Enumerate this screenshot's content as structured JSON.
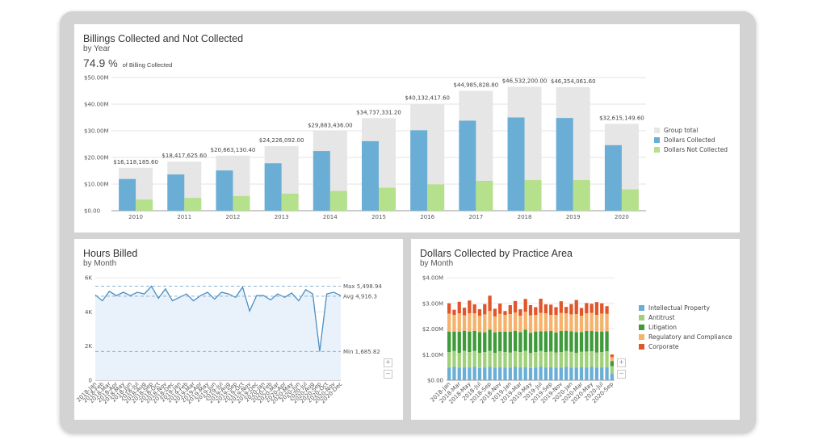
{
  "billing": {
    "title": "Billings Collected and Not Collected",
    "subtitle": "by Year",
    "kpi_value": "74.9",
    "kpi_unit": "%",
    "kpi_caption": "of Billing Collected"
  },
  "hours": {
    "title": "Hours Billed",
    "subtitle": "by Month",
    "zoom_in": "+",
    "zoom_out": "−"
  },
  "dollars": {
    "title": "Dollars Collected by Practice Area",
    "subtitle": "by Month",
    "zoom_in": "+",
    "zoom_out": "−"
  },
  "colors": {
    "group_total": "#e6e6e6",
    "collected": "#6aaed6",
    "not_collected": "#b5e08c",
    "area_fill": "#e9f2fb",
    "line": "#4a8ec2",
    "ip": "#6aaed6",
    "antitrust": "#9fd17a",
    "litigation": "#3f9a3a",
    "regulatory": "#f6b26b",
    "corporate": "#e0552a"
  },
  "chart_data": [
    {
      "type": "bar",
      "id": "billings",
      "categories": [
        "2010",
        "2011",
        "2012",
        "2013",
        "2014",
        "2015",
        "2016",
        "2017",
        "2018",
        "2019",
        "2020"
      ],
      "ylim": [
        0,
        50000000
      ],
      "y_ticks": [
        "$0.00",
        "$10.00M",
        "$20.00M",
        "$30.00M",
        "$40.00M",
        "$50.00M"
      ],
      "y_tick_values": [
        0,
        10000000,
        20000000,
        30000000,
        40000000,
        50000000
      ],
      "total_labels": [
        "$16,118,185.60",
        "$18,417,625.60",
        "$20,663,130.40",
        "$24,226,092.00",
        "$29,883,436.00",
        "$34,737,331.20",
        "$40,132,417.60",
        "$44,985,828.80",
        "$46,532,200.00",
        "$46,354,061.60",
        "$32,615,149.60"
      ],
      "series": [
        {
          "name": "Group total",
          "values": [
            16118185.6,
            18417625.6,
            20663130.4,
            24226092.0,
            29883436.0,
            34737331.2,
            40132417.6,
            44985828.8,
            46532200.0,
            46354061.6,
            32615149.6
          ]
        },
        {
          "name": "Dollars Collected",
          "values": [
            11900000,
            13600000,
            15100000,
            17800000,
            22400000,
            26100000,
            30200000,
            33800000,
            35000000,
            34800000,
            24600000
          ]
        },
        {
          "name": "Dollars Not Collected",
          "values": [
            4200000,
            4800000,
            5500000,
            6400000,
            7400000,
            8600000,
            9900000,
            11200000,
            11500000,
            11500000,
            8000000
          ]
        }
      ],
      "legend": "right",
      "grid": true
    },
    {
      "type": "line",
      "id": "hours",
      "x": [
        "2018-Jan",
        "2018-Feb",
        "2018-Mar",
        "2018-Apr",
        "2018-May",
        "2018-Jun",
        "2018-Jul",
        "2018-Aug",
        "2018-Sep",
        "2018-Oct",
        "2018-Nov",
        "2018-Dec",
        "2019-Jan",
        "2019-Feb",
        "2019-Mar",
        "2019-Apr",
        "2019-May",
        "2019-Jun",
        "2019-Jul",
        "2019-Aug",
        "2019-Sep",
        "2019-Oct",
        "2019-Nov",
        "2019-Dec",
        "2020-Jan",
        "2020-Feb",
        "2020-Mar",
        "2020-Apr",
        "2020-May",
        "2020-Jun",
        "2020-Jul",
        "2020-Aug",
        "2020-Sep",
        "2020-Oct",
        "2020-Nov",
        "2020-Dec"
      ],
      "values": [
        5000,
        4650,
        5200,
        4950,
        5150,
        4950,
        5150,
        5050,
        5500,
        4800,
        5350,
        4650,
        4850,
        5050,
        4650,
        4950,
        5150,
        4750,
        5150,
        5050,
        4850,
        5450,
        4050,
        4950,
        4950,
        4700,
        5050,
        4850,
        5100,
        4650,
        5300,
        5050,
        1685.82,
        5050,
        5150,
        4950
      ],
      "ylim": [
        0,
        6000
      ],
      "y_ticks": [
        "0",
        "2K",
        "4K",
        "6K"
      ],
      "y_tick_values": [
        0,
        2000,
        4000,
        6000
      ],
      "reference_lines": [
        {
          "label": "Max 5,498.94",
          "value": 5498.94
        },
        {
          "label": "Avg 4,916.3",
          "value": 4916.3
        },
        {
          "label": "Min 1,685.82",
          "value": 1685.82
        }
      ],
      "grid": true
    },
    {
      "type": "bar",
      "stacked": true,
      "id": "practice",
      "categories": [
        "2018-Jan",
        "2018-Feb",
        "2018-Mar",
        "2018-Apr",
        "2018-May",
        "2018-Jun",
        "2018-Jul",
        "2018-Aug",
        "2018-Sep",
        "2018-Oct",
        "2018-Nov",
        "2018-Dec",
        "2019-Jan",
        "2019-Feb",
        "2019-Mar",
        "2019-Apr",
        "2019-May",
        "2019-Jun",
        "2019-Jul",
        "2019-Aug",
        "2019-Sep",
        "2019-Oct",
        "2019-Nov",
        "2019-Dec",
        "2020-Jan",
        "2020-Feb",
        "2020-Mar",
        "2020-Apr",
        "2020-May",
        "2020-Jun",
        "2020-Jul",
        "2020-Aug",
        "2020-Sep"
      ],
      "x_tick_labels": [
        "2018-Jan",
        "2018-Mar",
        "2018-May",
        "2018-Jul",
        "2018-Sep",
        "2018-Nov",
        "2019-Jan",
        "2019-Mar",
        "2019-May",
        "2019-Jul",
        "2019-Sep",
        "2019-Nov",
        "2020-Jan",
        "2020-Mar",
        "2020-May",
        "2020-Jul",
        "2020-Sep"
      ],
      "ylim": [
        0,
        4000000
      ],
      "y_ticks": [
        "$0.00",
        "$1.00M",
        "$2.00M",
        "$3.00M",
        "$4.00M"
      ],
      "y_tick_values": [
        0,
        1000000,
        2000000,
        3000000,
        4000000
      ],
      "series": [
        {
          "name": "Intellectual Property",
          "values": [
            500000,
            520000,
            490000,
            510000,
            500000,
            530000,
            480000,
            500000,
            520000,
            490000,
            510000,
            500000,
            490000,
            520000,
            500000,
            510000,
            480000,
            500000,
            520000,
            500000,
            510000,
            490000,
            500000,
            520000,
            500000,
            490000,
            510000,
            500000,
            520000,
            490000,
            500000,
            510000,
            250000
          ]
        },
        {
          "name": "Antitrust",
          "values": [
            600000,
            620000,
            580000,
            640000,
            600000,
            610000,
            590000,
            600000,
            630000,
            580000,
            620000,
            600000,
            590000,
            610000,
            600000,
            640000,
            580000,
            600000,
            620000,
            600000,
            610000,
            590000,
            600000,
            620000,
            610000,
            580000,
            600000,
            620000,
            610000,
            590000,
            600000,
            620000,
            300000
          ]
        },
        {
          "name": "Litigation",
          "values": [
            800000,
            760000,
            820000,
            780000,
            800000,
            790000,
            810000,
            770000,
            820000,
            800000,
            760000,
            790000,
            810000,
            800000,
            780000,
            820000,
            790000,
            800000,
            770000,
            810000,
            800000,
            780000,
            820000,
            790000,
            800000,
            810000,
            770000,
            800000,
            790000,
            820000,
            800000,
            780000,
            200000
          ]
        },
        {
          "name": "Regulatory and Compliance",
          "values": [
            700000,
            650000,
            720000,
            600000,
            710000,
            680000,
            640000,
            700000,
            730000,
            620000,
            700000,
            660000,
            690000,
            710000,
            640000,
            700000,
            680000,
            650000,
            720000,
            700000,
            630000,
            690000,
            710000,
            680000,
            660000,
            700000,
            640000,
            690000,
            710000,
            650000,
            700000,
            680000,
            150000
          ]
        },
        {
          "name": "Corporate",
          "values": [
            400000,
            200000,
            450000,
            300000,
            500000,
            350000,
            250000,
            400000,
            600000,
            300000,
            400000,
            150000,
            350000,
            450000,
            250000,
            500000,
            400000,
            300000,
            550000,
            350000,
            400000,
            300000,
            450000,
            250000,
            400000,
            550000,
            300000,
            400000,
            350000,
            500000,
            400000,
            300000,
            100000
          ]
        }
      ],
      "legend": "right",
      "grid": true
    }
  ]
}
